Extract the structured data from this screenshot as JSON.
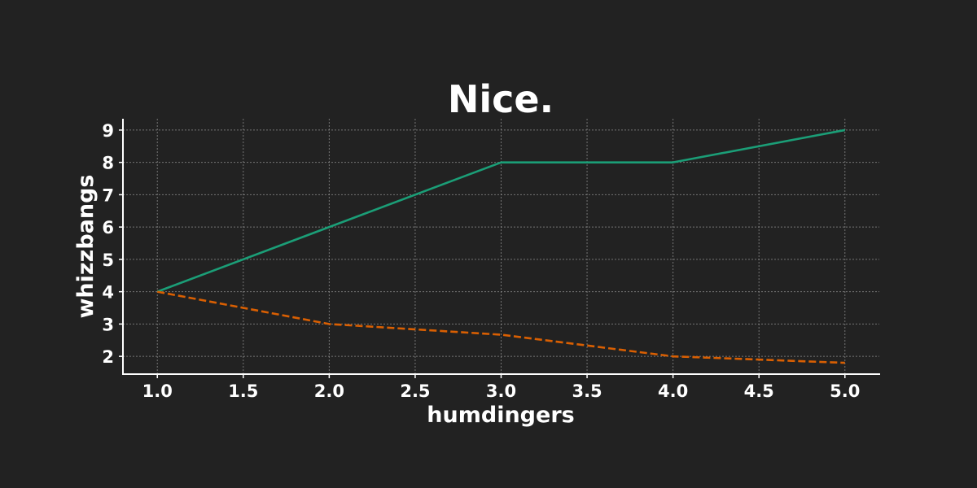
{
  "chart_data": {
    "type": "line",
    "title": "Nice.",
    "xlabel": "humdingers",
    "ylabel": "whizzbangs",
    "xlim": [
      0.8,
      5.2
    ],
    "ylim": [
      1.45,
      9.35
    ],
    "x_ticks": [
      1.0,
      1.5,
      2.0,
      2.5,
      3.0,
      3.5,
      4.0,
      4.5,
      5.0
    ],
    "x_tick_labels": [
      "1.0",
      "1.5",
      "2.0",
      "2.5",
      "3.0",
      "3.5",
      "4.0",
      "4.5",
      "5.0"
    ],
    "y_ticks": [
      2,
      3,
      4,
      5,
      6,
      7,
      8,
      9
    ],
    "y_tick_labels": [
      "2",
      "3",
      "4",
      "5",
      "6",
      "7",
      "8",
      "9"
    ],
    "grid": true,
    "x": [
      1,
      2,
      3,
      4,
      5
    ],
    "series": [
      {
        "values": [
          4,
          6,
          8,
          8,
          9
        ],
        "color": "#1b9e77",
        "style": "solid"
      },
      {
        "values": [
          4,
          3,
          2.67,
          2,
          1.8
        ],
        "color": "#d95f02",
        "style": "dashed"
      }
    ]
  }
}
